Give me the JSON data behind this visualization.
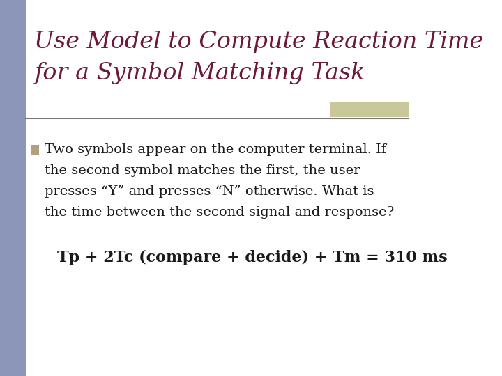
{
  "title_line1": "Use Model to Compute Reaction Time",
  "title_line2": "for a Symbol Matching Task",
  "title_color": "#6B1A3A",
  "bullet_text_line1": "Two symbols appear on the computer terminal. If",
  "bullet_text_line2": "the second symbol matches the first, the user",
  "bullet_text_line3": "presses “Y” and presses “N” otherwise. What is",
  "bullet_text_line4": "the time between the second signal and response?",
  "formula_text": "Tp + 2Tc (compare + decide) + Tm = 310 ms",
  "bg_color": "#FFFFFF",
  "left_bar_color": "#8B96B8",
  "right_bar_color": "#C8C89A",
  "separator_color": "#7A7A7A",
  "bullet_square_color": "#B0A080",
  "body_text_color": "#1A1A1A"
}
